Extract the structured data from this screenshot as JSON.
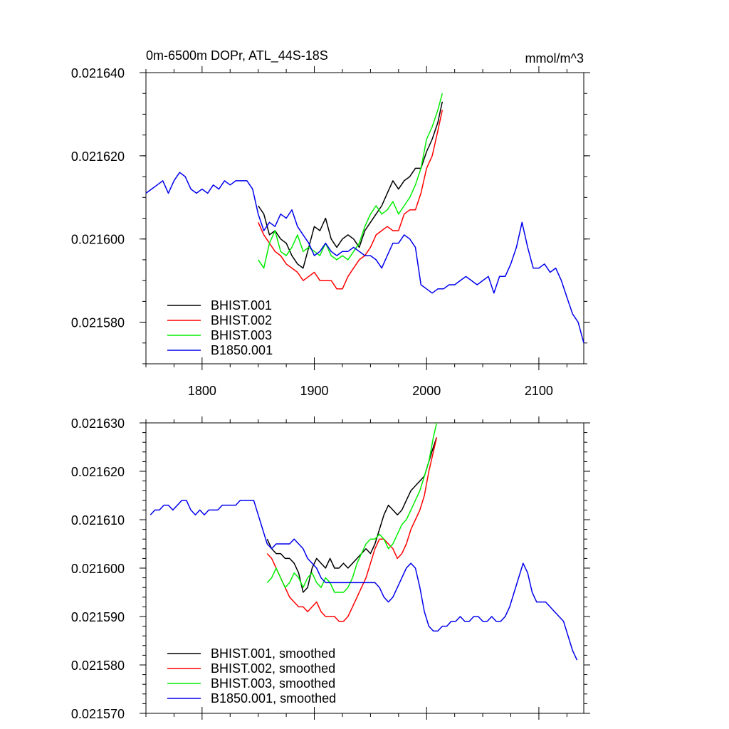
{
  "chart_data": [
    {
      "type": "line",
      "title": "0m-6500m DOPr, ATL_44S-18S",
      "units": "mmol/m^3",
      "xlim": [
        1750,
        2140
      ],
      "ylim": [
        0.02157,
        0.02164
      ],
      "x_ticks": [
        1800,
        1900,
        2000,
        2100
      ],
      "y_ticks": [
        0.02158,
        0.0216,
        0.02162,
        0.02164
      ],
      "y_tick_labels": [
        "0.021580",
        "0.021600",
        "0.021620",
        "0.021640"
      ],
      "legend_position": "bottom-left",
      "series": [
        {
          "name": "BHIST.001",
          "color": "#000000",
          "x": [
            1850,
            1855,
            1860,
            1865,
            1870,
            1875,
            1880,
            1885,
            1890,
            1895,
            1900,
            1905,
            1910,
            1915,
            1920,
            1925,
            1930,
            1935,
            1940,
            1945,
            1950,
            1955,
            1960,
            1965,
            1970,
            1975,
            1980,
            1985,
            1990,
            1995,
            2000,
            2005,
            2010,
            2014
          ],
          "y": [
            0.021608,
            0.021606,
            0.021601,
            0.021602,
            0.0216,
            0.021599,
            0.021596,
            0.021594,
            0.021593,
            0.021598,
            0.021603,
            0.021602,
            0.021605,
            0.0216,
            0.021598,
            0.0216,
            0.021601,
            0.0216,
            0.021598,
            0.021602,
            0.021604,
            0.021606,
            0.021608,
            0.021611,
            0.021614,
            0.021612,
            0.021614,
            0.021615,
            0.021617,
            0.021617,
            0.021621,
            0.021624,
            0.021628,
            0.021633
          ]
        },
        {
          "name": "BHIST.002",
          "color": "#ff0000",
          "x": [
            1850,
            1855,
            1860,
            1865,
            1870,
            1875,
            1880,
            1885,
            1890,
            1895,
            1900,
            1905,
            1910,
            1915,
            1920,
            1925,
            1930,
            1935,
            1940,
            1945,
            1950,
            1955,
            1960,
            1965,
            1970,
            1975,
            1980,
            1985,
            1990,
            1995,
            2000,
            2005,
            2010,
            2014
          ],
          "y": [
            0.021604,
            0.021601,
            0.021599,
            0.021597,
            0.021596,
            0.021594,
            0.021593,
            0.021592,
            0.02159,
            0.021591,
            0.021592,
            0.02159,
            0.02159,
            0.02159,
            0.021588,
            0.021588,
            0.021591,
            0.021593,
            0.021595,
            0.021596,
            0.021598,
            0.021601,
            0.021602,
            0.021603,
            0.021602,
            0.021602,
            0.021606,
            0.021607,
            0.021607,
            0.021611,
            0.021617,
            0.02162,
            0.021626,
            0.021631
          ]
        },
        {
          "name": "BHIST.003",
          "color": "#00ee00",
          "x": [
            1850,
            1855,
            1860,
            1865,
            1870,
            1875,
            1880,
            1885,
            1890,
            1895,
            1900,
            1905,
            1910,
            1915,
            1920,
            1925,
            1930,
            1935,
            1940,
            1945,
            1950,
            1955,
            1960,
            1965,
            1970,
            1975,
            1980,
            1985,
            1990,
            1995,
            2000,
            2005,
            2010,
            2014
          ],
          "y": [
            0.021595,
            0.021593,
            0.021599,
            0.021602,
            0.021597,
            0.021596,
            0.021598,
            0.021601,
            0.021597,
            0.021598,
            0.021597,
            0.021596,
            0.021599,
            0.021596,
            0.021595,
            0.021596,
            0.021595,
            0.021597,
            0.021599,
            0.021603,
            0.021606,
            0.021608,
            0.021606,
            0.021607,
            0.021609,
            0.021606,
            0.021608,
            0.02161,
            0.021613,
            0.021617,
            0.021624,
            0.021627,
            0.021631,
            0.021635
          ]
        },
        {
          "name": "B1850.001",
          "color": "#0000ee",
          "x": [
            1750,
            1755,
            1760,
            1765,
            1770,
            1775,
            1780,
            1785,
            1790,
            1795,
            1800,
            1805,
            1810,
            1815,
            1820,
            1825,
            1830,
            1835,
            1840,
            1845,
            1850,
            1855,
            1860,
            1865,
            1870,
            1875,
            1880,
            1885,
            1890,
            1895,
            1900,
            1905,
            1910,
            1915,
            1920,
            1925,
            1930,
            1935,
            1940,
            1945,
            1950,
            1955,
            1960,
            1965,
            1970,
            1975,
            1980,
            1985,
            1990,
            1995,
            2000,
            2005,
            2010,
            2015,
            2020,
            2025,
            2030,
            2035,
            2040,
            2045,
            2050,
            2055,
            2060,
            2065,
            2070,
            2075,
            2080,
            2085,
            2090,
            2095,
            2100,
            2105,
            2110,
            2115,
            2120,
            2125,
            2130,
            2135,
            2140
          ],
          "y": [
            0.021611,
            0.021612,
            0.021613,
            0.021614,
            0.021611,
            0.021614,
            0.021616,
            0.021615,
            0.021612,
            0.021611,
            0.021612,
            0.021611,
            0.021613,
            0.021612,
            0.021614,
            0.021613,
            0.021614,
            0.021614,
            0.021614,
            0.021612,
            0.021606,
            0.021602,
            0.021604,
            0.021603,
            0.021606,
            0.021605,
            0.021607,
            0.021603,
            0.021601,
            0.021599,
            0.021596,
            0.021597,
            0.021599,
            0.021597,
            0.021596,
            0.021597,
            0.021597,
            0.021598,
            0.021597,
            0.021596,
            0.021596,
            0.021595,
            0.021593,
            0.021596,
            0.021599,
            0.021599,
            0.021601,
            0.0216,
            0.021598,
            0.021589,
            0.021588,
            0.021587,
            0.021588,
            0.021588,
            0.021589,
            0.021589,
            0.02159,
            0.021591,
            0.02159,
            0.021589,
            0.02159,
            0.021591,
            0.021587,
            0.021591,
            0.021591,
            0.021594,
            0.021598,
            0.021604,
            0.021598,
            0.021593,
            0.021593,
            0.021594,
            0.021592,
            0.021593,
            0.02159,
            0.021586,
            0.021582,
            0.02158,
            0.021575
          ]
        }
      ]
    },
    {
      "type": "line",
      "xlim": [
        1750,
        2140
      ],
      "ylim": [
        0.02157,
        0.02163
      ],
      "x_ticks": [
        1800,
        1900,
        2000,
        2100
      ],
      "y_ticks": [
        0.02157,
        0.02158,
        0.02159,
        0.0216,
        0.02161,
        0.02162,
        0.02163
      ],
      "y_tick_labels": [
        "0.021570",
        "0.021580",
        "0.021590",
        "0.021600",
        "0.021610",
        "0.021620",
        "0.021630"
      ],
      "legend_position": "bottom-left",
      "series": [
        {
          "name": "BHIST.001, smoothed",
          "color": "#000000",
          "x": [
            1858,
            1862,
            1866,
            1870,
            1874,
            1878,
            1882,
            1886,
            1890,
            1894,
            1898,
            1902,
            1906,
            1910,
            1914,
            1918,
            1922,
            1926,
            1930,
            1934,
            1938,
            1942,
            1946,
            1950,
            1954,
            1958,
            1962,
            1966,
            1970,
            1974,
            1978,
            1982,
            1986,
            1990,
            1994,
            1998,
            2002,
            2006,
            2009
          ],
          "y": [
            0.021606,
            0.021604,
            0.021603,
            0.021603,
            0.021602,
            0.021602,
            0.021601,
            0.021599,
            0.021595,
            0.021596,
            0.0216,
            0.021602,
            0.021601,
            0.0216,
            0.021602,
            0.0216,
            0.0216,
            0.021601,
            0.0216,
            0.021601,
            0.021602,
            0.021603,
            0.021604,
            0.021603,
            0.021605,
            0.021608,
            0.021611,
            0.021613,
            0.021612,
            0.021611,
            0.021612,
            0.021614,
            0.021616,
            0.021617,
            0.021618,
            0.021619,
            0.021622,
            0.021625,
            0.021627
          ]
        },
        {
          "name": "BHIST.002, smoothed",
          "color": "#ff0000",
          "x": [
            1858,
            1862,
            1866,
            1870,
            1874,
            1878,
            1882,
            1886,
            1890,
            1894,
            1898,
            1902,
            1906,
            1910,
            1914,
            1918,
            1922,
            1926,
            1930,
            1934,
            1938,
            1942,
            1946,
            1950,
            1954,
            1958,
            1962,
            1966,
            1970,
            1974,
            1978,
            1982,
            1986,
            1990,
            1994,
            1998,
            2002,
            2006,
            2009
          ],
          "y": [
            0.021603,
            0.021602,
            0.0216,
            0.021598,
            0.021596,
            0.021594,
            0.021593,
            0.021592,
            0.021592,
            0.021591,
            0.021592,
            0.021593,
            0.021591,
            0.02159,
            0.02159,
            0.02159,
            0.021589,
            0.021589,
            0.02159,
            0.021592,
            0.021594,
            0.021596,
            0.021598,
            0.021601,
            0.021604,
            0.021606,
            0.021606,
            0.021605,
            0.021604,
            0.021602,
            0.021603,
            0.021605,
            0.021608,
            0.02161,
            0.021612,
            0.021615,
            0.02162,
            0.021624,
            0.021627
          ]
        },
        {
          "name": "BHIST.003, smoothed",
          "color": "#00ee00",
          "x": [
            1858,
            1862,
            1866,
            1870,
            1874,
            1878,
            1882,
            1886,
            1890,
            1894,
            1898,
            1902,
            1906,
            1910,
            1914,
            1918,
            1922,
            1926,
            1930,
            1934,
            1938,
            1942,
            1946,
            1950,
            1954,
            1958,
            1962,
            1966,
            1970,
            1974,
            1978,
            1982,
            1986,
            1990,
            1994,
            1998,
            2002,
            2006,
            2009
          ],
          "y": [
            0.021597,
            0.021598,
            0.0216,
            0.021598,
            0.021596,
            0.021597,
            0.021599,
            0.021598,
            0.021596,
            0.021598,
            0.021599,
            0.021597,
            0.021596,
            0.021598,
            0.021597,
            0.021595,
            0.021595,
            0.021595,
            0.021596,
            0.021598,
            0.021601,
            0.021603,
            0.021605,
            0.021606,
            0.021606,
            0.021607,
            0.021606,
            0.021604,
            0.021605,
            0.021607,
            0.021609,
            0.02161,
            0.021612,
            0.021614,
            0.021616,
            0.021619,
            0.021622,
            0.021627,
            0.02163
          ]
        },
        {
          "name": "B1850.001, smoothed",
          "color": "#0000ee",
          "x": [
            1754,
            1758,
            1762,
            1766,
            1770,
            1774,
            1778,
            1782,
            1786,
            1790,
            1794,
            1798,
            1802,
            1806,
            1810,
            1814,
            1818,
            1822,
            1826,
            1830,
            1834,
            1838,
            1842,
            1846,
            1850,
            1854,
            1858,
            1862,
            1866,
            1870,
            1874,
            1878,
            1882,
            1886,
            1890,
            1894,
            1898,
            1902,
            1906,
            1910,
            1914,
            1918,
            1922,
            1926,
            1930,
            1934,
            1938,
            1942,
            1946,
            1950,
            1954,
            1958,
            1962,
            1966,
            1970,
            1974,
            1978,
            1982,
            1986,
            1990,
            1994,
            1998,
            2002,
            2006,
            2010,
            2014,
            2018,
            2022,
            2026,
            2030,
            2034,
            2038,
            2042,
            2046,
            2050,
            2054,
            2058,
            2062,
            2066,
            2070,
            2074,
            2078,
            2082,
            2086,
            2090,
            2094,
            2098,
            2102,
            2106,
            2110,
            2114,
            2118,
            2122,
            2126,
            2130,
            2134
          ],
          "y": [
            0.021611,
            0.021612,
            0.021612,
            0.021613,
            0.021613,
            0.021612,
            0.021613,
            0.021614,
            0.021614,
            0.021612,
            0.021611,
            0.021612,
            0.021611,
            0.021612,
            0.021612,
            0.021612,
            0.021613,
            0.021613,
            0.021613,
            0.021613,
            0.021614,
            0.021614,
            0.021614,
            0.021614,
            0.021611,
            0.021608,
            0.021605,
            0.021604,
            0.021605,
            0.021605,
            0.021605,
            0.021605,
            0.021606,
            0.021605,
            0.021604,
            0.021602,
            0.021601,
            0.0216,
            0.021598,
            0.021597,
            0.021597,
            0.021597,
            0.021597,
            0.021597,
            0.021597,
            0.021597,
            0.021597,
            0.021597,
            0.021597,
            0.021597,
            0.021597,
            0.021596,
            0.021594,
            0.021593,
            0.021594,
            0.021596,
            0.021598,
            0.0216,
            0.021601,
            0.0216,
            0.021596,
            0.021591,
            0.021588,
            0.021587,
            0.021587,
            0.021588,
            0.021588,
            0.021589,
            0.021589,
            0.02159,
            0.021589,
            0.021589,
            0.02159,
            0.02159,
            0.021589,
            0.021589,
            0.02159,
            0.021589,
            0.021589,
            0.02159,
            0.021592,
            0.021595,
            0.021598,
            0.021601,
            0.021599,
            0.021595,
            0.021593,
            0.021593,
            0.021593,
            0.021592,
            0.021591,
            0.02159,
            0.021589,
            0.021586,
            0.021583,
            0.021581
          ]
        }
      ]
    }
  ]
}
